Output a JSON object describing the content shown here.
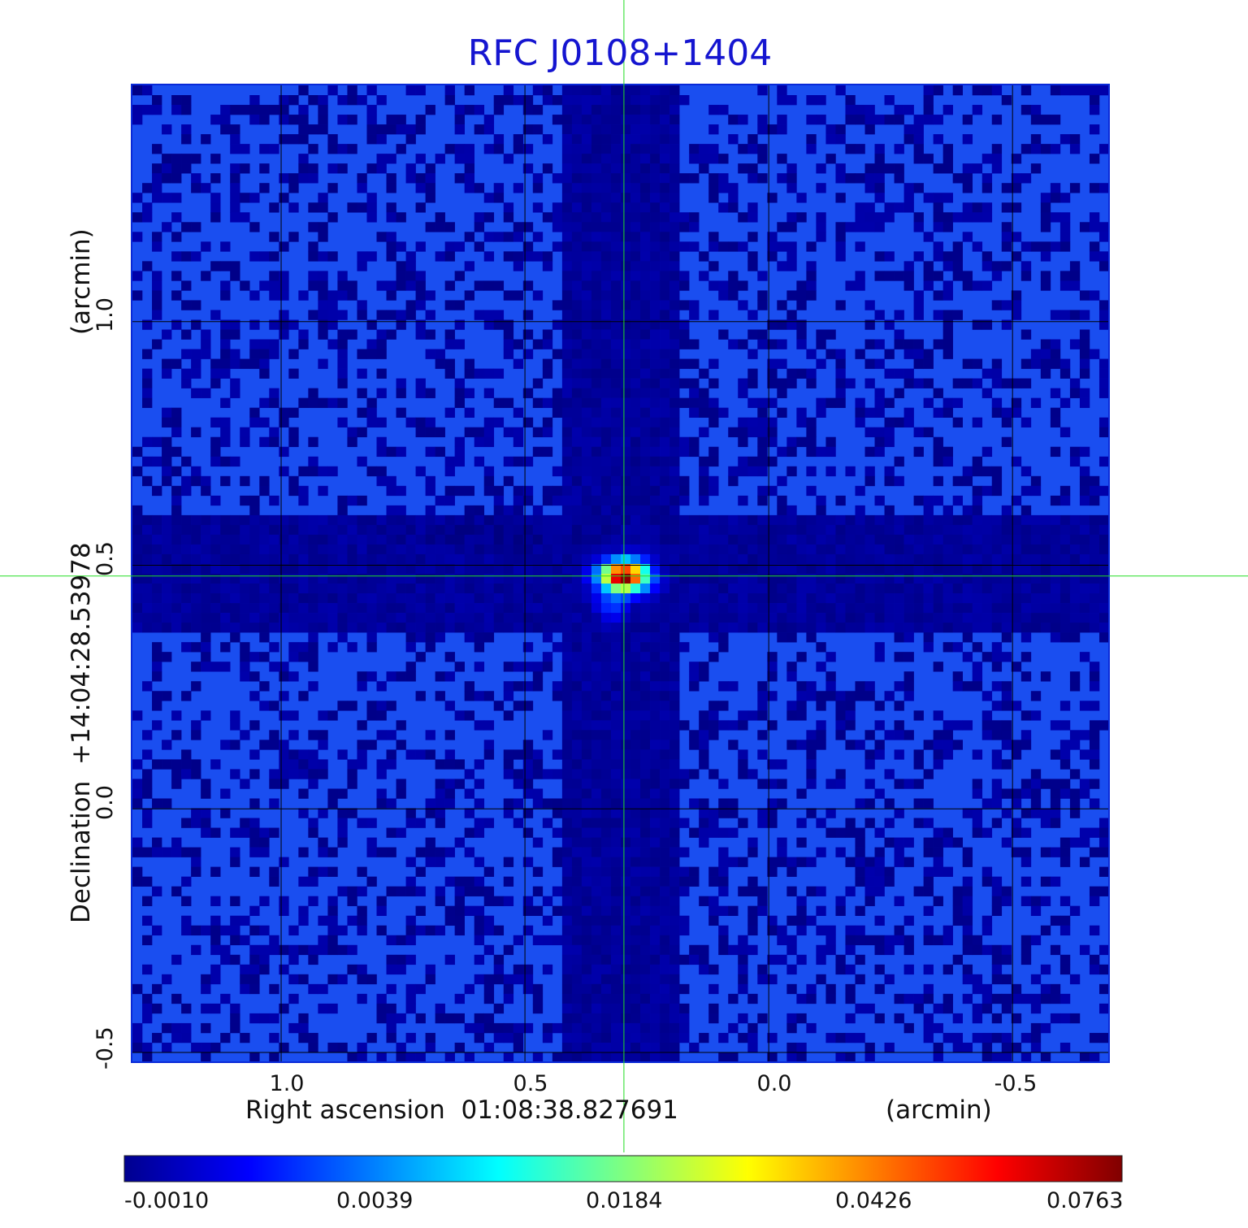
{
  "chart_data": {
    "type": "heatmap",
    "title": "RFC J0108+1404",
    "xlabel": "Right ascension  01:08:38.827691",
    "xunit": "(arcmin)",
    "ylabel": "Declination  +14:04:28.53978",
    "yunit": "(arcmin)",
    "x_ticks": [
      "1.0",
      "0.5",
      "0.0",
      "-0.5"
    ],
    "x_tick_values": [
      1.0,
      0.5,
      0.0,
      -0.5
    ],
    "y_ticks": [
      "1.0",
      "0.5",
      "0.0",
      "-0.5"
    ],
    "y_tick_values": [
      1.0,
      0.5,
      0.0,
      -0.5
    ],
    "xlim": [
      1.305,
      -0.698
    ],
    "ylim": [
      -0.52,
      1.485
    ],
    "grid": true,
    "colormap": "jet",
    "colorbar_ticks": [
      "-0.0010",
      "0.0039",
      "0.0184",
      "0.0426",
      "0.0763"
    ],
    "colorbar_values": [
      -0.001,
      0.0039,
      0.0184,
      0.0426,
      0.0763
    ],
    "source_peak": {
      "x": 0.297,
      "y": 0.478,
      "value": 0.0763
    },
    "crosshair": {
      "x": 0.297,
      "y": 0.478
    },
    "background_level": 0.001
  },
  "colors": {
    "title": "#1515d0",
    "crosshair": "#22dd22",
    "grid": "#000000"
  }
}
